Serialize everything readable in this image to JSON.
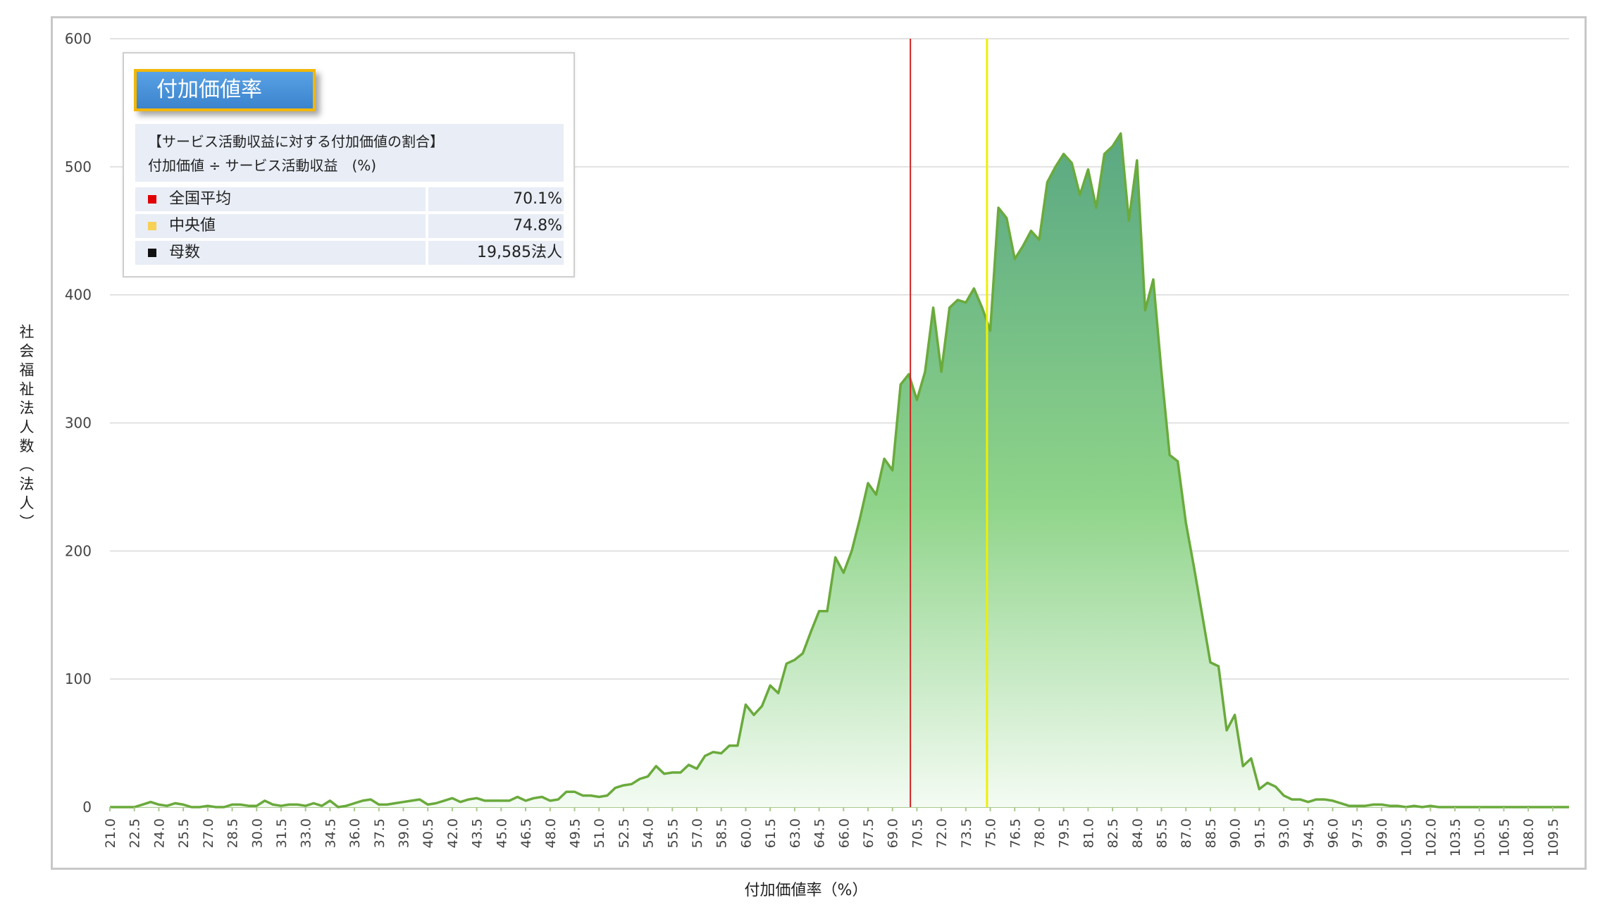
{
  "chart_data": {
    "type": "area",
    "xlabel": "付加価値率（%）",
    "ylabel": "社会福祉法人数（法人）",
    "ylim": [
      0,
      600
    ],
    "yticks": [
      0,
      100,
      200,
      300,
      400,
      500,
      600
    ],
    "xlim": [
      21.0,
      110.5
    ],
    "xticks": [
      21.0,
      22.5,
      24.0,
      25.5,
      27.0,
      28.5,
      30.0,
      31.5,
      33.0,
      34.5,
      36.0,
      37.5,
      39.0,
      40.5,
      42.0,
      43.5,
      45.0,
      46.5,
      48.0,
      49.5,
      51.0,
      52.5,
      54.0,
      55.5,
      57.0,
      58.5,
      60.0,
      61.5,
      63.0,
      64.5,
      66.0,
      67.5,
      69.0,
      70.5,
      72.0,
      73.5,
      75.0,
      76.5,
      78.0,
      79.5,
      81.0,
      82.5,
      84.0,
      85.5,
      87.0,
      88.5,
      90.0,
      91.5,
      93.0,
      94.5,
      96.0,
      97.5,
      99.0,
      100.5,
      102.0,
      103.5,
      105.0,
      106.5,
      108.0,
      109.5
    ],
    "grid": true,
    "x_step": 0.5,
    "values": [
      0,
      0,
      0,
      0,
      2,
      4,
      2,
      1,
      3,
      2,
      0,
      0,
      1,
      0,
      0,
      2,
      2,
      1,
      1,
      5,
      2,
      1,
      2,
      2,
      1,
      3,
      1,
      5,
      0,
      1,
      3,
      5,
      6,
      2,
      2,
      3,
      4,
      5,
      6,
      2,
      3,
      5,
      7,
      4,
      6,
      7,
      5,
      5,
      5,
      5,
      8,
      5,
      7,
      8,
      5,
      6,
      12,
      12,
      9,
      9,
      8,
      9,
      15,
      17,
      18,
      22,
      24,
      32,
      26,
      27,
      27,
      33,
      30,
      40,
      43,
      42,
      48,
      48,
      80,
      72,
      79,
      95,
      89,
      112,
      115,
      120,
      137,
      153,
      153,
      195,
      183,
      200,
      225,
      253,
      244,
      272,
      263,
      330,
      338,
      318,
      340,
      390,
      340,
      390,
      396,
      394,
      405,
      390,
      372,
      468,
      460,
      428,
      438,
      450,
      443,
      488,
      500,
      510,
      503,
      478,
      498,
      468,
      510,
      516,
      526,
      458,
      505,
      388,
      412,
      340,
      275,
      270,
      222,
      187,
      150,
      113,
      110,
      60,
      72,
      32,
      38,
      14,
      19,
      16,
      9,
      6,
      6,
      4,
      6,
      6,
      5,
      3,
      1,
      1,
      1,
      2,
      2,
      1,
      1,
      0,
      1,
      0,
      1,
      0,
      0,
      0,
      0,
      0,
      0,
      0,
      0,
      0,
      0,
      0,
      0,
      0,
      0,
      0,
      0,
      0
    ],
    "mean_line": {
      "label": "全国平均",
      "value": 70.1,
      "color": "#d02020"
    },
    "median_line": {
      "label": "中央値",
      "value": 74.8,
      "color": "#f0f000"
    },
    "line_color": "#6aaa3c",
    "fill_top_color": "#5aa882",
    "fill_mid_color": "#8fd48a",
    "fill_bottom_color": "#f4fbf3"
  },
  "legend": {
    "title": "付加価値率",
    "desc_line1": "【サービス活動収益に対する付加価値の割合】",
    "desc_line2": "付加価値 ÷ サービス活動収益　(%)",
    "rows": [
      {
        "label": "全国平均",
        "value": "70.1%",
        "color": "#e00000"
      },
      {
        "label": "中央値",
        "value": "74.8%",
        "color": "#f7d154"
      },
      {
        "label": "母数",
        "value": "19,585法人",
        "color": "#111111"
      }
    ]
  }
}
